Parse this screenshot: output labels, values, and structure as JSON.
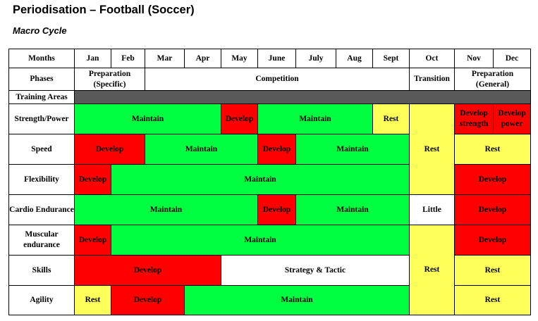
{
  "title": "Periodisation – Football (Soccer)",
  "subtitle": "Macro Cycle",
  "colors": {
    "maintain": "#00ff40",
    "develop": "#ff0000",
    "rest": "#ffff59",
    "training_bar": "#595959"
  },
  "headers": {
    "months_label": "Months",
    "months": [
      "Jan",
      "Feb",
      "Mar",
      "Apr",
      "May",
      "June",
      "July",
      "Aug",
      "Sept",
      "Oct",
      "Nov",
      "Dec"
    ],
    "phases_label": "Phases",
    "phases": {
      "preparation_specific": "Preparation (Specific)",
      "competition": "Competition",
      "transition": "Transition",
      "preparation_general": "Preparation (General)"
    },
    "training_areas_label": "Training Areas"
  },
  "rows": {
    "strength": {
      "label": "Strength/Power",
      "maintain_1": "Maintain",
      "develop_1": "Develop",
      "maintain_2": "Maintain",
      "rest": "Rest",
      "develop_strength": "Develop strength",
      "develop_power": "Develop power"
    },
    "speed": {
      "label": "Speed",
      "develop_1": "Develop",
      "maintain_1": "Maintain",
      "develop_2": "Develop",
      "maintain_2": "Maintain",
      "oct_rest": "Rest",
      "rest": "Rest"
    },
    "flexibility": {
      "label": "Flexibility",
      "develop_1": "Develop",
      "maintain_1": "Maintain",
      "develop_2": "Develop"
    },
    "cardio": {
      "label": "Cardio Endurance",
      "maintain_1": "Maintain",
      "develop_1": "Develop",
      "maintain_2": "Maintain",
      "little": "Little",
      "develop_2": "Develop"
    },
    "muscular": {
      "label": "Muscular endurance",
      "develop_1": "Develop",
      "maintain_1": "Maintain",
      "develop_2": "Develop"
    },
    "skills": {
      "label": "Skills",
      "develop_1": "Develop",
      "strategy": "Strategy & Tactic",
      "oct_rest": "Rest",
      "rest": "Rest"
    },
    "agility": {
      "label": "Agility",
      "rest_1": "Rest",
      "develop_1": "Develop",
      "maintain_1": "Maintain",
      "rest_2": "Rest"
    }
  }
}
